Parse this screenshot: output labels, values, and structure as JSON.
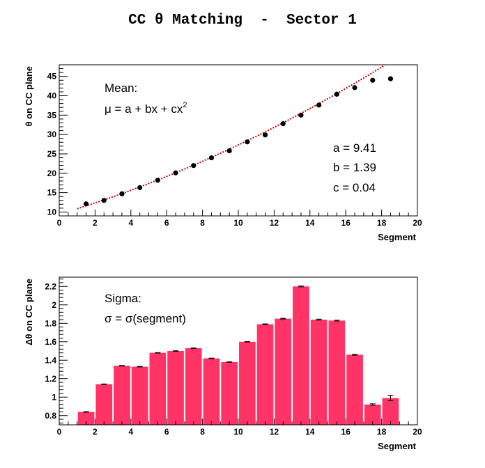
{
  "title": "CC θ Matching  -  Sector 1",
  "chart_data": [
    {
      "type": "scatter",
      "xlabel": "Segment",
      "ylabel": "θ on CC plane",
      "xlim": [
        0,
        20
      ],
      "ylim": [
        9,
        48
      ],
      "x_ticks": [
        0,
        2,
        4,
        6,
        8,
        10,
        12,
        14,
        16,
        18,
        20
      ],
      "y_ticks": [
        10,
        15,
        20,
        25,
        30,
        35,
        40,
        45
      ],
      "grid": false,
      "x": [
        1.5,
        2.5,
        3.5,
        4.5,
        5.5,
        6.5,
        7.5,
        8.5,
        9.5,
        10.5,
        11.5,
        12.5,
        13.5,
        14.5,
        15.5,
        16.5,
        17.5,
        18.5
      ],
      "y": [
        12.1,
        13.0,
        14.7,
        16.3,
        18.2,
        20.1,
        22.0,
        24.0,
        25.8,
        28.1,
        29.9,
        32.8,
        35.0,
        37.6,
        40.4,
        42.1,
        44.0,
        44.4
      ],
      "fit": {
        "a": 9.41,
        "b": 1.39,
        "c": 0.04,
        "x_range": [
          1.0,
          18.8
        ],
        "color": "#cc0000",
        "style": "dotted"
      },
      "annotations": {
        "mean_label": "Mean:",
        "formula": "μ = a + bx + cx",
        "formula_sup": "2",
        "a_text": "a = 9.41",
        "b_text": "b = 1.39",
        "c_text": "c = 0.04"
      },
      "marker_color": "#000000"
    },
    {
      "type": "bar",
      "xlabel": "Segment",
      "ylabel": "Δθ on CC plane",
      "xlim": [
        0,
        20
      ],
      "ylim": [
        0.7,
        2.3
      ],
      "x_ticks": [
        0,
        2,
        4,
        6,
        8,
        10,
        12,
        14,
        16,
        18,
        20
      ],
      "y_ticks": [
        0.8,
        1.0,
        1.2,
        1.4,
        1.6,
        1.8,
        2.0,
        2.2
      ],
      "y_tick_labels": [
        "0.8",
        "1",
        "1.2",
        "1.4",
        "1.6",
        "1.8",
        "2",
        "2.2"
      ],
      "grid": false,
      "bin_edges": [
        1,
        2,
        3,
        4,
        5,
        6,
        7,
        8,
        9,
        10,
        11,
        12,
        13,
        14,
        15,
        16,
        17,
        18,
        19
      ],
      "values": [
        0.84,
        1.14,
        1.34,
        1.33,
        1.48,
        1.5,
        1.53,
        1.42,
        1.38,
        1.6,
        1.79,
        1.85,
        2.2,
        1.84,
        1.83,
        1.46,
        0.92,
        0.99
      ],
      "errors": [
        0.003,
        0.003,
        0.003,
        0.003,
        0.003,
        0.003,
        0.003,
        0.003,
        0.003,
        0.003,
        0.004,
        0.004,
        0.005,
        0.005,
        0.005,
        0.006,
        0.008,
        0.03
      ],
      "annotations": {
        "sigma_label": "Sigma:",
        "formula": "σ = σ(segment)"
      },
      "bar_color": "#ff3366"
    }
  ]
}
